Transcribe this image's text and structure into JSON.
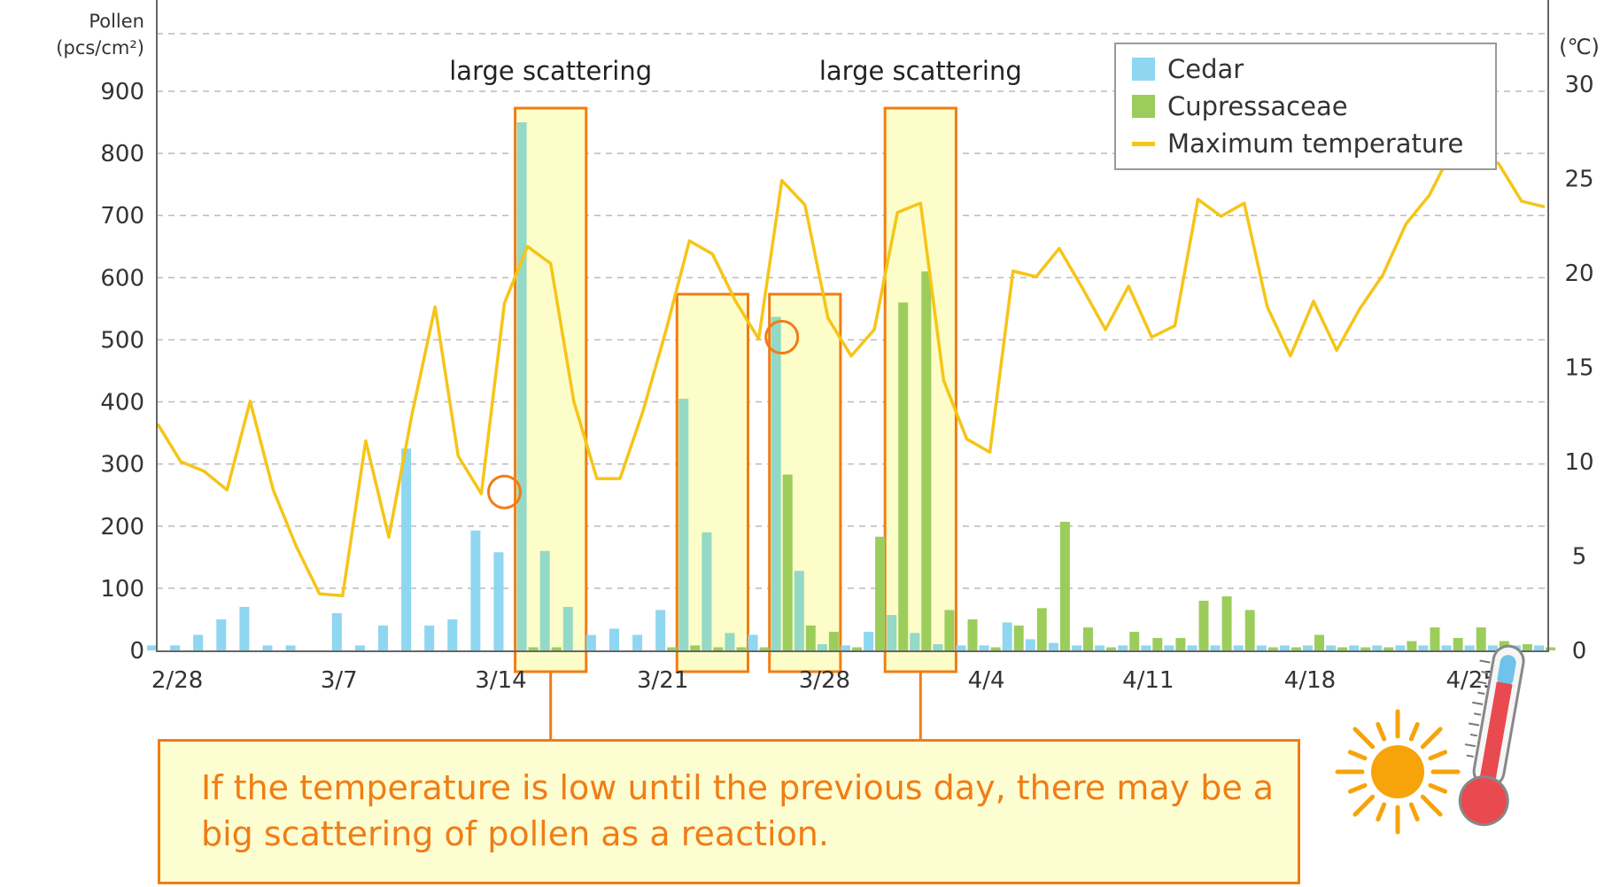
{
  "chart_data": {
    "type": "bar",
    "left_axis": {
      "title_line1": "Pollen",
      "title_line2": "(pcs/cm²)",
      "min": 0,
      "max": 900,
      "ticks": [
        0,
        100,
        200,
        300,
        400,
        500,
        600,
        700,
        800,
        900
      ]
    },
    "right_axis": {
      "title": "(℃)",
      "min": 0,
      "max": 30,
      "ticks": [
        0,
        5,
        10,
        15,
        20,
        25,
        30
      ]
    },
    "x_tick_labels": [
      {
        "day": 1,
        "label": "2/28"
      },
      {
        "day": 8,
        "label": "3/7"
      },
      {
        "day": 15,
        "label": "3/14"
      },
      {
        "day": 22,
        "label": "3/21"
      },
      {
        "day": 29,
        "label": "3/28"
      },
      {
        "day": 36,
        "label": "4/4"
      },
      {
        "day": 43,
        "label": "4/11"
      },
      {
        "day": 50,
        "label": "4/18"
      },
      {
        "day": 57,
        "label": "4/25"
      }
    ],
    "num_days": 61,
    "series": [
      {
        "name": "Cedar",
        "color": "#8fd6f0",
        "values": [
          8,
          8,
          25,
          50,
          70,
          8,
          8,
          0,
          60,
          8,
          40,
          325,
          40,
          50,
          193,
          158,
          850,
          160,
          70,
          25,
          35,
          25,
          65,
          405,
          190,
          28,
          25,
          537,
          128,
          10,
          8,
          30,
          57,
          28,
          10,
          8,
          8,
          45,
          18,
          12,
          8,
          8,
          8,
          8,
          8,
          8,
          8,
          8,
          8,
          8,
          8,
          8,
          8,
          8,
          8,
          8,
          8,
          8,
          8,
          8,
          8
        ]
      },
      {
        "name": "Cupressaceae",
        "color": "#9ccd5c",
        "values": [
          0,
          0,
          0,
          0,
          0,
          0,
          0,
          0,
          0,
          0,
          0,
          0,
          0,
          0,
          0,
          0,
          5,
          5,
          0,
          0,
          0,
          0,
          5,
          8,
          5,
          5,
          5,
          283,
          40,
          30,
          5,
          183,
          560,
          610,
          65,
          50,
          5,
          40,
          68,
          207,
          37,
          5,
          30,
          20,
          20,
          80,
          87,
          65,
          5,
          5,
          25,
          5,
          5,
          5,
          15,
          37,
          20,
          37,
          15,
          10,
          5
        ]
      },
      {
        "name": "Maximum temperature",
        "color": "#f5c518",
        "values": [
          12,
          10,
          9.5,
          8.5,
          13.2,
          8.5,
          5.5,
          3,
          2.9,
          11.1,
          6,
          12.5,
          18.2,
          10.3,
          8.3,
          18.4,
          21.4,
          20.5,
          13.2,
          9.1,
          9.1,
          12.7,
          17,
          21.7,
          21,
          18.5,
          16.5,
          24.9,
          23.6,
          17.6,
          15.6,
          17,
          23.2,
          23.7,
          14.3,
          11.2,
          10.5,
          20.1,
          19.8,
          21.3,
          19.2,
          17,
          19.3,
          16.6,
          17.2,
          23.9,
          23,
          23.7,
          18.2,
          15.6,
          18.5,
          15.9,
          18.1,
          19.9,
          22.6,
          24.1,
          26.5,
          26.3,
          25.8,
          23.8,
          23.5
        ]
      }
    ],
    "highlights": [
      {
        "start_day": 16,
        "end_day": 18,
        "label": "large scattering"
      },
      {
        "start_day": 23,
        "end_day": 25,
        "label": ""
      },
      {
        "start_day": 27,
        "end_day": 29,
        "label": ""
      },
      {
        "start_day": 32,
        "end_day": 34,
        "label": "large scattering"
      }
    ],
    "circles": [
      {
        "day": 15,
        "temperature": 8.3
      },
      {
        "day": 27,
        "temperature": 16.5
      }
    ],
    "legend_position": "top-right",
    "grid": true
  },
  "legend": [
    {
      "label": "Cedar",
      "color": "#8fd6f0",
      "kind": "box"
    },
    {
      "label": "Cupressaceae",
      "color": "#9ccd5c",
      "kind": "box"
    },
    {
      "label": "Maximum temperature",
      "color": "#f5c518",
      "kind": "line"
    }
  ],
  "callout": {
    "text": "If the temperature is low until the previous day, there may be a big scattering of pollen as a reaction."
  },
  "icons": [
    "sun-icon",
    "thermometer-icon"
  ],
  "colors": {
    "accent_orange": "#f07d16",
    "highlight_fill": "#fcfdd0",
    "grid": "#bbbbbb"
  }
}
